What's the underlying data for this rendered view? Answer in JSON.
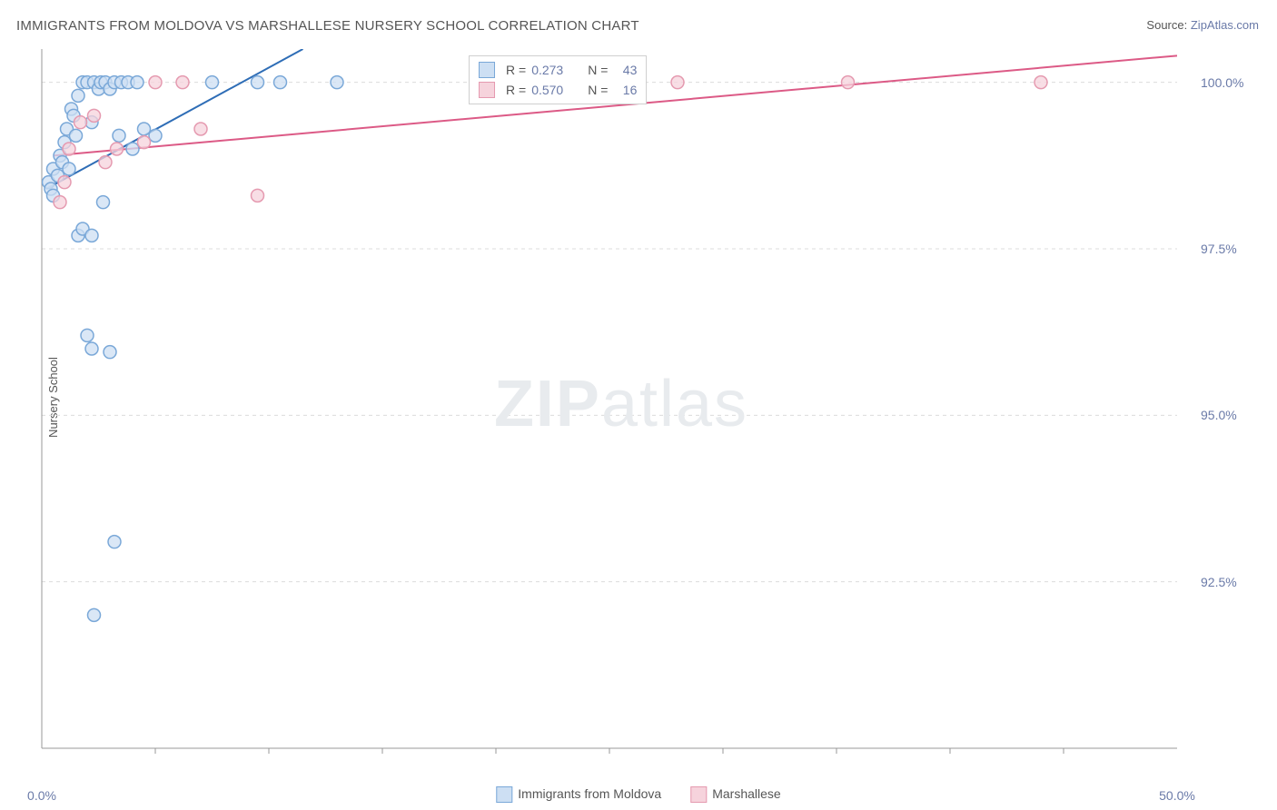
{
  "title": "IMMIGRANTS FROM MOLDOVA VS MARSHALLESE NURSERY SCHOOL CORRELATION CHART",
  "source_label": "Source:",
  "source_site": "ZipAtlas.com",
  "ylabel": "Nursery School",
  "watermark_bold": "ZIP",
  "watermark_light": "atlas",
  "chart": {
    "type": "scatter",
    "xlim": [
      0.0,
      50.0
    ],
    "ylim": [
      90.0,
      100.5
    ],
    "xtick_labels": [
      "0.0%",
      "50.0%"
    ],
    "xtick_positions": [
      0.0,
      50.0
    ],
    "xtick_minor": [
      5,
      10,
      15,
      20,
      25,
      30,
      35,
      40,
      45
    ],
    "ytick_labels": [
      "92.5%",
      "95.0%",
      "97.5%",
      "100.0%"
    ],
    "ytick_positions": [
      92.5,
      95.0,
      97.5,
      100.0
    ],
    "background_color": "#ffffff",
    "grid_color": "#dcdcdc",
    "axis_color": "#999999",
    "marker_radius": 7,
    "marker_stroke_width": 1.5,
    "line_width": 2,
    "series": [
      {
        "name": "Immigrants from Moldova",
        "fill": "#cddff3",
        "stroke": "#7aa8d8",
        "line_color": "#2e6db6",
        "R": "0.273",
        "N": "43",
        "regression": {
          "x1": 0.2,
          "y1": 98.4,
          "x2": 11.5,
          "y2": 100.5
        },
        "points": [
          [
            0.3,
            98.5
          ],
          [
            0.4,
            98.4
          ],
          [
            0.5,
            98.3
          ],
          [
            0.5,
            98.7
          ],
          [
            0.7,
            98.6
          ],
          [
            0.8,
            98.9
          ],
          [
            0.9,
            98.8
          ],
          [
            1.0,
            99.1
          ],
          [
            1.1,
            99.3
          ],
          [
            1.2,
            98.7
          ],
          [
            1.3,
            99.6
          ],
          [
            1.4,
            99.5
          ],
          [
            1.5,
            99.2
          ],
          [
            1.6,
            99.8
          ],
          [
            1.8,
            100.0
          ],
          [
            2.0,
            100.0
          ],
          [
            2.2,
            99.4
          ],
          [
            2.3,
            100.0
          ],
          [
            2.5,
            99.9
          ],
          [
            2.6,
            100.0
          ],
          [
            2.7,
            98.2
          ],
          [
            2.8,
            100.0
          ],
          [
            3.0,
            99.9
          ],
          [
            3.2,
            100.0
          ],
          [
            3.4,
            99.2
          ],
          [
            3.5,
            100.0
          ],
          [
            3.8,
            100.0
          ],
          [
            4.0,
            99.0
          ],
          [
            4.2,
            100.0
          ],
          [
            4.5,
            99.3
          ],
          [
            5.0,
            99.2
          ],
          [
            7.5,
            100.0
          ],
          [
            9.5,
            100.0
          ],
          [
            10.5,
            100.0
          ],
          [
            13.0,
            100.0
          ],
          [
            1.6,
            97.7
          ],
          [
            1.8,
            97.8
          ],
          [
            2.2,
            97.7
          ],
          [
            2.0,
            96.2
          ],
          [
            2.2,
            96.0
          ],
          [
            3.0,
            95.95
          ],
          [
            3.2,
            93.1
          ],
          [
            2.3,
            92.0
          ]
        ]
      },
      {
        "name": "Marshallese",
        "fill": "#f6d3dc",
        "stroke": "#e59ab0",
        "line_color": "#dc5a86",
        "R": "0.570",
        "N": "16",
        "regression": {
          "x1": 0.5,
          "y1": 98.9,
          "x2": 50.0,
          "y2": 100.4
        },
        "points": [
          [
            0.8,
            98.2
          ],
          [
            1.0,
            98.5
          ],
          [
            1.2,
            99.0
          ],
          [
            1.7,
            99.4
          ],
          [
            2.3,
            99.5
          ],
          [
            2.8,
            98.8
          ],
          [
            3.3,
            99.0
          ],
          [
            4.5,
            99.1
          ],
          [
            5.0,
            100.0
          ],
          [
            6.2,
            100.0
          ],
          [
            7.0,
            99.3
          ],
          [
            9.5,
            98.3
          ],
          [
            25.5,
            100.0
          ],
          [
            28.0,
            100.0
          ],
          [
            35.5,
            100.0
          ],
          [
            44.0,
            100.0
          ]
        ]
      }
    ],
    "stat_box": {
      "x": 18.8,
      "y_top": 100.4
    },
    "bottom_legend": [
      {
        "label": "Immigrants from Moldova",
        "fill": "#cddff3",
        "stroke": "#7aa8d8"
      },
      {
        "label": "Marshallese",
        "fill": "#f6d3dc",
        "stroke": "#e59ab0"
      }
    ]
  }
}
